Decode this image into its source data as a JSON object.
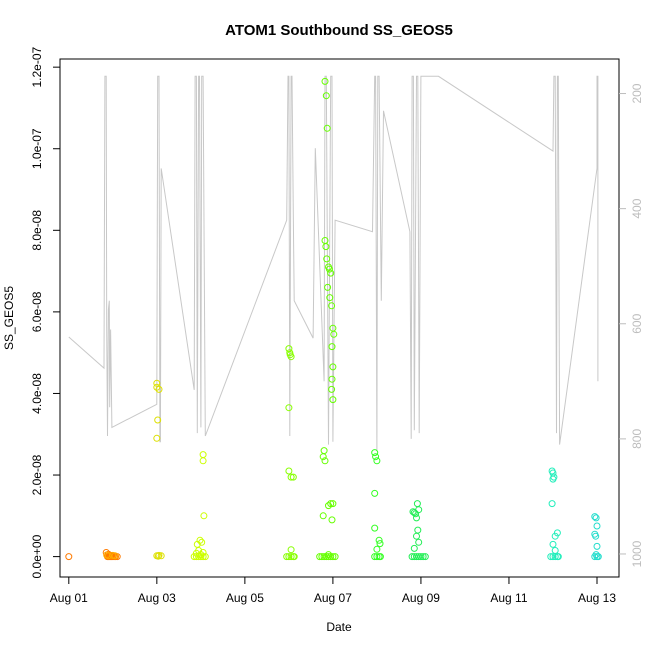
{
  "chart_data": {
    "type": "scatter",
    "title": "ATOM1 Southbound SS_GEOS5",
    "xlabel": "Date",
    "ylabel": "SS_GEOS5",
    "x_ticks": [
      "Aug 01",
      "Aug 03",
      "Aug 05",
      "Aug 07",
      "Aug 09",
      "Aug 11",
      "Aug 13"
    ],
    "x_tick_days": [
      1,
      3,
      5,
      7,
      9,
      11,
      13
    ],
    "xlim_days": [
      0.8,
      13.5
    ],
    "ylim": [
      -5e-09,
      1.22e-07
    ],
    "y_ticks": [
      "0.0e+00",
      "2.0e-08",
      "4.0e-08",
      "6.0e-08",
      "8.0e-08",
      "1.0e-07",
      "1.2e-07"
    ],
    "y_tick_values": [
      0,
      2e-08,
      4e-08,
      6e-08,
      8e-08,
      1e-07,
      1.2e-07
    ],
    "y2_ticks": [
      "200",
      "400",
      "600",
      "800",
      "1000"
    ],
    "y2_tick_values": [
      200,
      400,
      600,
      800,
      1000
    ],
    "y2lim": [
      1040,
      140
    ],
    "colors": {
      "line": "#c8c8c8",
      "axis": "#000000",
      "right_axis": "#bdbdbd"
    },
    "series": [
      {
        "color": "#ff7a00",
        "points": [
          [
            1.0,
            0
          ],
          [
            1.85,
            1e-09
          ],
          [
            1.9,
            6e-10
          ],
          [
            1.95,
            3e-10
          ],
          [
            1.88,
            0
          ],
          [
            1.9,
            0
          ],
          [
            1.92,
            0
          ],
          [
            1.95,
            0
          ],
          [
            1.97,
            0
          ],
          [
            2.0,
            0
          ],
          [
            2.03,
            0
          ],
          [
            2.06,
            0
          ],
          [
            2.1,
            0
          ]
        ]
      },
      {
        "color": "#ffaa00",
        "points": [
          [
            1.86,
            4e-10
          ],
          [
            1.9,
            2e-10
          ],
          [
            2.0,
            3e-10
          ],
          [
            2.05,
            2e-10
          ]
        ]
      },
      {
        "color": "#dde000",
        "points": [
          [
            3.0,
            4.25e-08
          ],
          [
            3.0,
            4.15e-08
          ],
          [
            3.05,
            4.1e-08
          ],
          [
            3.02,
            3.35e-08
          ],
          [
            3.0,
            2.9e-08
          ],
          [
            3.0,
            2e-10
          ],
          [
            3.03,
            1e-10
          ],
          [
            3.05,
            3e-10
          ],
          [
            3.1,
            2e-10
          ]
        ]
      },
      {
        "color": "#ccff00",
        "points": [
          [
            3.85,
            0
          ],
          [
            3.9,
            0
          ],
          [
            3.95,
            0
          ],
          [
            4.0,
            0
          ],
          [
            4.05,
            0
          ],
          [
            4.1,
            0
          ],
          [
            3.9,
            8e-10
          ],
          [
            4.0,
            5e-10
          ],
          [
            3.92,
            3e-09
          ],
          [
            3.98,
            4e-09
          ],
          [
            4.02,
            3.5e-09
          ],
          [
            4.05,
            2.5e-08
          ],
          [
            4.05,
            2.35e-08
          ],
          [
            4.07,
            1e-08
          ],
          [
            3.95,
            1.5e-09
          ],
          [
            4.05,
            1e-09
          ]
        ]
      },
      {
        "color": "#88ff00",
        "points": [
          [
            6.0,
            5.1e-08
          ],
          [
            6.02,
            5e-08
          ],
          [
            6.05,
            4.9e-08
          ],
          [
            6.03,
            4.95e-08
          ],
          [
            6.0,
            3.65e-08
          ],
          [
            6.0,
            2.1e-08
          ],
          [
            6.05,
            1.95e-08
          ],
          [
            6.1,
            1.95e-08
          ],
          [
            6.05,
            1.7e-09
          ],
          [
            5.95,
            0
          ],
          [
            6.0,
            0
          ],
          [
            6.05,
            0
          ],
          [
            6.1,
            0
          ],
          [
            6.12,
            0
          ]
        ]
      },
      {
        "color": "#66ff00",
        "points": [
          [
            6.82,
            1.165e-07
          ],
          [
            6.85,
            1.13e-07
          ],
          [
            6.87,
            1.05e-07
          ],
          [
            6.82,
            7.75e-08
          ],
          [
            6.84,
            7.6e-08
          ],
          [
            6.86,
            7.3e-08
          ],
          [
            6.9,
            7.1e-08
          ],
          [
            6.92,
            7.05e-08
          ],
          [
            6.95,
            6.95e-08
          ],
          [
            6.88,
            6.6e-08
          ],
          [
            6.93,
            6.35e-08
          ],
          [
            6.97,
            6.15e-08
          ],
          [
            7.0,
            5.6e-08
          ],
          [
            7.02,
            5.45e-08
          ],
          [
            6.98,
            5.15e-08
          ],
          [
            7.0,
            4.65e-08
          ],
          [
            6.98,
            4.35e-08
          ],
          [
            6.97,
            4.1e-08
          ],
          [
            7.0,
            3.85e-08
          ],
          [
            6.8,
            2.6e-08
          ],
          [
            6.78,
            2.45e-08
          ],
          [
            6.82,
            2.35e-08
          ],
          [
            6.95,
            1.3e-08
          ],
          [
            7.0,
            1.3e-08
          ],
          [
            6.9,
            1.25e-08
          ],
          [
            6.78,
            1e-08
          ],
          [
            6.98,
            9e-09
          ],
          [
            6.7,
            0
          ],
          [
            6.75,
            0
          ],
          [
            6.8,
            0
          ],
          [
            6.85,
            0
          ],
          [
            6.9,
            0
          ],
          [
            6.95,
            0
          ],
          [
            7.0,
            0
          ],
          [
            7.05,
            0
          ],
          [
            6.9,
            5e-10
          ]
        ]
      },
      {
        "color": "#33ff22",
        "points": [
          [
            7.95,
            2.55e-08
          ],
          [
            7.97,
            2.45e-08
          ],
          [
            8.0,
            2.35e-08
          ],
          [
            7.95,
            1.55e-08
          ],
          [
            7.95,
            7e-09
          ],
          [
            8.05,
            4e-09
          ],
          [
            8.07,
            3.2e-09
          ],
          [
            8.0,
            1.8e-09
          ],
          [
            7.95,
            0
          ],
          [
            8.0,
            0
          ],
          [
            8.05,
            0
          ],
          [
            8.08,
            0
          ]
        ]
      },
      {
        "color": "#22ee55",
        "points": [
          [
            8.82,
            1.1e-08
          ],
          [
            8.85,
            1.08e-08
          ],
          [
            8.88,
            1.05e-08
          ],
          [
            8.92,
            1.3e-08
          ],
          [
            8.95,
            1.15e-08
          ],
          [
            8.9,
            9.5e-09
          ],
          [
            8.93,
            6.5e-09
          ],
          [
            8.9,
            5e-09
          ],
          [
            8.95,
            3.5e-09
          ],
          [
            8.85,
            2e-09
          ],
          [
            8.8,
            0
          ],
          [
            8.85,
            0
          ],
          [
            8.9,
            0
          ],
          [
            8.95,
            0
          ],
          [
            9.0,
            0
          ],
          [
            9.05,
            0
          ],
          [
            9.1,
            0
          ]
        ]
      },
      {
        "color": "#22eebb",
        "points": [
          [
            11.98,
            2.1e-08
          ],
          [
            12.0,
            2.05e-08
          ],
          [
            12.02,
            1.95e-08
          ],
          [
            12.0,
            1.9e-08
          ],
          [
            11.98,
            1.3e-08
          ],
          [
            12.05,
            5e-09
          ],
          [
            12.1,
            5.8e-09
          ],
          [
            12.0,
            3e-09
          ],
          [
            12.05,
            1.5e-09
          ],
          [
            11.95,
            0
          ],
          [
            12.0,
            0
          ],
          [
            12.05,
            0
          ],
          [
            12.1,
            0
          ],
          [
            12.12,
            0
          ]
        ]
      },
      {
        "color": "#22ddcc",
        "points": [
          [
            12.95,
            9.8e-09
          ],
          [
            12.98,
            9.5e-09
          ],
          [
            13.0,
            7.5e-09
          ],
          [
            12.95,
            5.5e-09
          ],
          [
            12.97,
            5e-09
          ],
          [
            13.0,
            2.5e-09
          ],
          [
            12.95,
            0
          ],
          [
            13.0,
            0
          ],
          [
            13.03,
            0
          ],
          [
            12.98,
            5e-10
          ]
        ]
      }
    ],
    "pressure_profile": [
      [
        1.0,
        623
      ],
      [
        1.8,
        677
      ],
      [
        1.82,
        170
      ],
      [
        1.85,
        170
      ],
      [
        1.86,
        605
      ],
      [
        1.88,
        795
      ],
      [
        1.9,
        575
      ],
      [
        1.92,
        560
      ],
      [
        1.93,
        745
      ],
      [
        1.95,
        610
      ],
      [
        1.98,
        780
      ],
      [
        3.0,
        740
      ],
      [
        3.02,
        170
      ],
      [
        3.05,
        170
      ],
      [
        3.07,
        805
      ],
      [
        3.08,
        805
      ],
      [
        3.1,
        330
      ],
      [
        3.85,
        715
      ],
      [
        3.87,
        170
      ],
      [
        3.9,
        170
      ],
      [
        3.92,
        790
      ],
      [
        3.95,
        170
      ],
      [
        3.97,
        170
      ],
      [
        4.0,
        780
      ],
      [
        4.02,
        170
      ],
      [
        4.05,
        170
      ],
      [
        4.1,
        795
      ],
      [
        5.95,
        420
      ],
      [
        5.98,
        170
      ],
      [
        6.0,
        170
      ],
      [
        6.02,
        795
      ],
      [
        6.05,
        170
      ],
      [
        6.07,
        170
      ],
      [
        6.1,
        410
      ],
      [
        6.12,
        560
      ],
      [
        6.55,
        625
      ],
      [
        6.6,
        295
      ],
      [
        6.8,
        700
      ],
      [
        6.82,
        170
      ],
      [
        6.85,
        170
      ],
      [
        6.9,
        810
      ],
      [
        6.95,
        170
      ],
      [
        6.98,
        170
      ],
      [
        7.0,
        805
      ],
      [
        7.05,
        420
      ],
      [
        7.9,
        440
      ],
      [
        7.95,
        170
      ],
      [
        7.97,
        170
      ],
      [
        8.0,
        820
      ],
      [
        8.02,
        170
      ],
      [
        8.05,
        170
      ],
      [
        8.1,
        560
      ],
      [
        8.15,
        230
      ],
      [
        8.75,
        440
      ],
      [
        8.78,
        800
      ],
      [
        8.8,
        170
      ],
      [
        8.83,
        170
      ],
      [
        8.85,
        785
      ],
      [
        8.9,
        170
      ],
      [
        8.93,
        170
      ],
      [
        8.96,
        790
      ],
      [
        9.0,
        170
      ],
      [
        9.05,
        170
      ],
      [
        9.4,
        170
      ],
      [
        12.0,
        300
      ],
      [
        12.02,
        170
      ],
      [
        12.05,
        170
      ],
      [
        12.08,
        790
      ],
      [
        12.1,
        170
      ],
      [
        12.12,
        170
      ],
      [
        12.15,
        810
      ],
      [
        13.0,
        330
      ],
      [
        13.0,
        170
      ],
      [
        13.02,
        170
      ],
      [
        13.02,
        700
      ]
    ]
  }
}
